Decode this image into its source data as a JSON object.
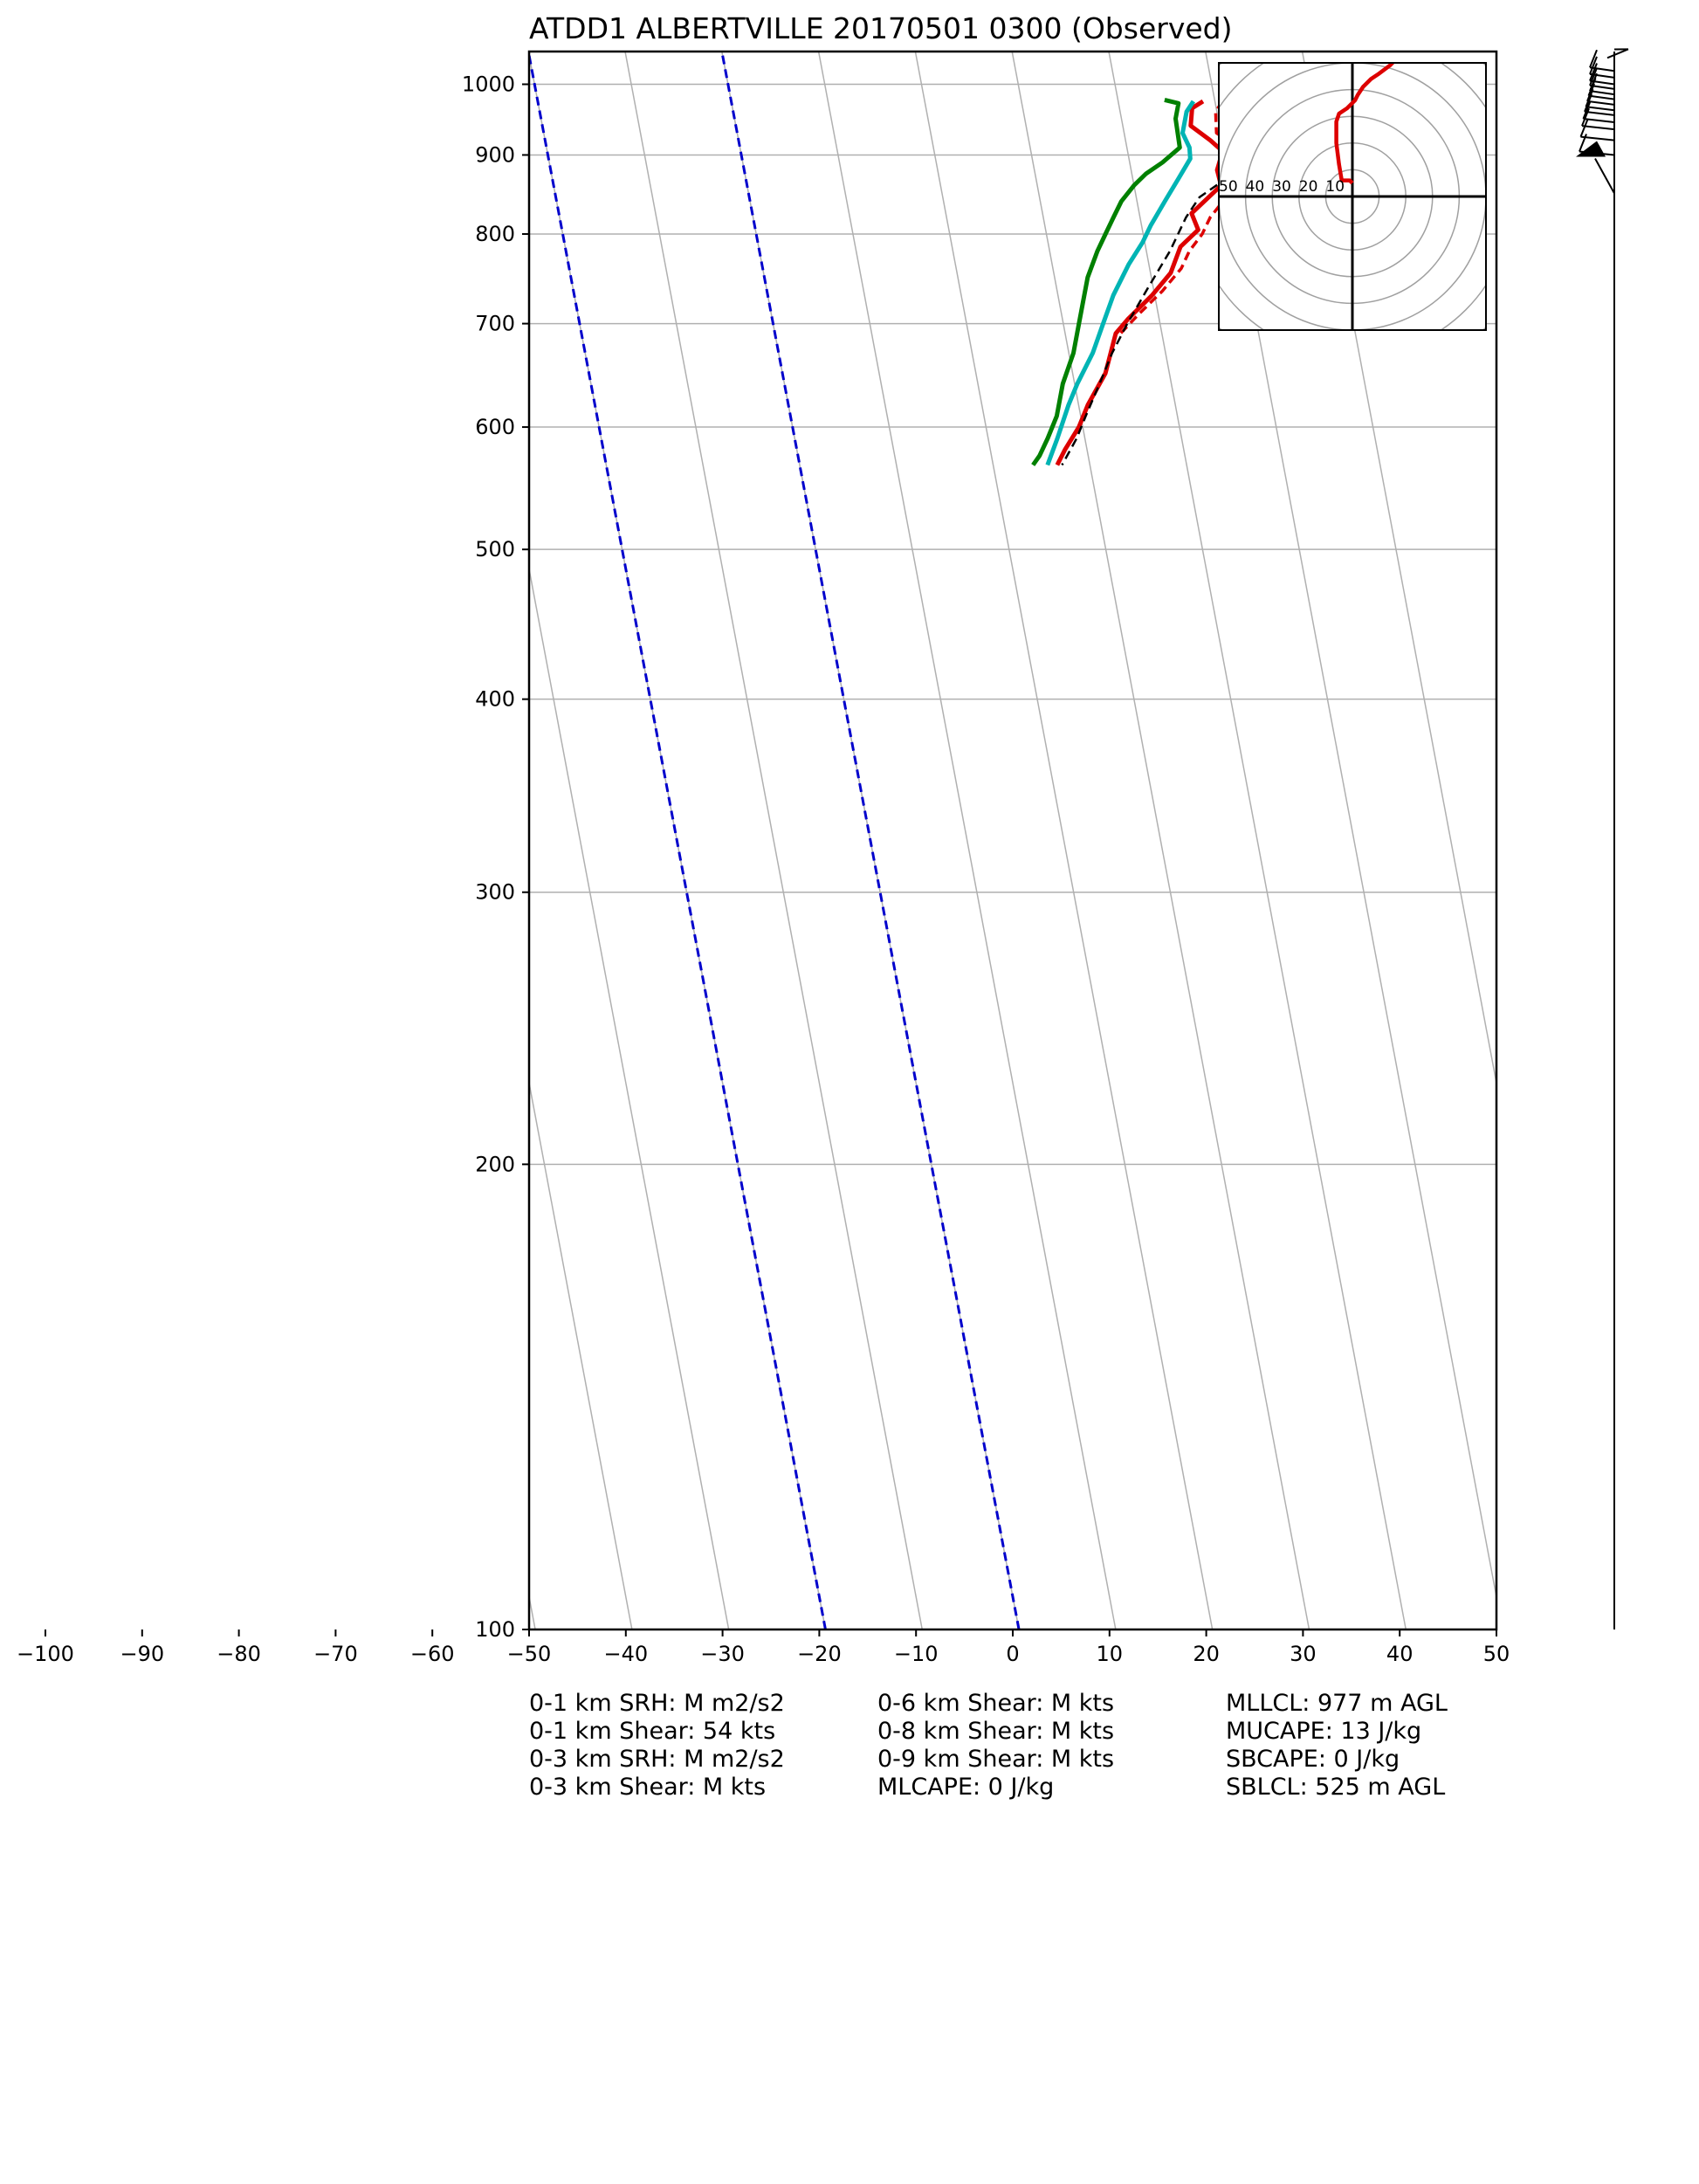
{
  "chart_data": {
    "type": "line",
    "title": "ATDD1 ALBERTVILLE 20170501 0300   (Observed)",
    "xlim": [
      -50,
      50
    ],
    "ylim": [
      1050,
      100
    ],
    "y_scale": "log",
    "grid": true,
    "x_ticks": [
      "−100",
      "−90",
      "−80",
      "−70",
      "−60",
      "−50",
      "−40",
      "−30",
      "−20",
      "−10",
      "0",
      "10",
      "20",
      "30",
      "40",
      "50"
    ],
    "x_tick_values": [
      -100,
      -90,
      -80,
      -70,
      -60,
      -50,
      -40,
      -30,
      -20,
      -10,
      0,
      10,
      20,
      30,
      40,
      50
    ],
    "y_ticks": [
      "100",
      "200",
      "300",
      "400",
      "500",
      "600",
      "700",
      "800",
      "900",
      "1000"
    ],
    "y_tick_values": [
      100,
      200,
      300,
      400,
      500,
      600,
      700,
      800,
      900,
      1000
    ],
    "isotherms_0_and_minus20": [
      0,
      -20
    ],
    "series": [
      {
        "color": "#dd0000",
        "style": "solid",
        "points": [
          [
            20.0,
            975
          ],
          [
            19.0,
            965
          ],
          [
            19.2,
            940
          ],
          [
            21.5,
            920
          ],
          [
            23.0,
            905
          ],
          [
            22.8,
            880
          ],
          [
            23.5,
            860
          ],
          [
            21.0,
            825
          ],
          [
            22.0,
            805
          ],
          [
            20.5,
            785
          ],
          [
            20.0,
            755
          ],
          [
            18.5,
            730
          ],
          [
            16.5,
            705
          ],
          [
            15.5,
            690
          ],
          [
            15.2,
            650
          ],
          [
            14.0,
            620
          ],
          [
            13.5,
            600
          ],
          [
            12.5,
            580
          ],
          [
            12.0,
            567
          ]
        ]
      },
      {
        "color": "#dd0000",
        "style": "dashed",
        "points": [
          [
            22.0,
            975
          ],
          [
            21.5,
            960
          ],
          [
            22.0,
            930
          ],
          [
            24.5,
            910
          ],
          [
            25.0,
            895
          ],
          [
            25.5,
            875
          ],
          [
            24.5,
            850
          ],
          [
            23.0,
            820
          ],
          [
            22.5,
            800
          ],
          [
            21.5,
            780
          ],
          [
            21.0,
            760
          ],
          [
            19.5,
            735
          ],
          [
            17.5,
            710
          ],
          [
            16.0,
            690
          ]
        ]
      },
      {
        "color": "#000000",
        "style": "dashed",
        "points": [
          [
            25.5,
            900
          ],
          [
            24.0,
            870
          ],
          [
            21.5,
            845
          ],
          [
            20.5,
            820
          ],
          [
            19.5,
            780
          ],
          [
            18.0,
            740
          ],
          [
            16.5,
            700
          ],
          [
            15.5,
            670
          ],
          [
            14.8,
            640
          ],
          [
            14.0,
            610
          ],
          [
            13.5,
            590
          ],
          [
            12.5,
            567
          ]
        ]
      },
      {
        "color": "#00b4b4",
        "style": "solid",
        "points": [
          [
            19.0,
            975
          ],
          [
            18.5,
            960
          ],
          [
            18.5,
            930
          ],
          [
            19.5,
            910
          ],
          [
            19.8,
            895
          ],
          [
            19.0,
            870
          ],
          [
            18.0,
            840
          ],
          [
            17.0,
            810
          ],
          [
            16.5,
            790
          ],
          [
            15.5,
            765
          ],
          [
            14.5,
            730
          ],
          [
            14.0,
            700
          ],
          [
            13.5,
            670
          ],
          [
            12.5,
            640
          ],
          [
            12.0,
            620
          ],
          [
            11.5,
            590
          ],
          [
            11.0,
            567
          ]
        ]
      },
      {
        "color": "#008000",
        "style": "solid",
        "points": [
          [
            16.0,
            977
          ],
          [
            17.5,
            972
          ],
          [
            17.5,
            950
          ],
          [
            18.0,
            930
          ],
          [
            18.5,
            910
          ],
          [
            17.0,
            890
          ],
          [
            15.5,
            875
          ],
          [
            14.5,
            860
          ],
          [
            13.5,
            840
          ],
          [
            13.0,
            820
          ],
          [
            12.5,
            800
          ],
          [
            12.0,
            780
          ],
          [
            11.5,
            750
          ],
          [
            11.5,
            720
          ],
          [
            11.5,
            700
          ],
          [
            11.5,
            670
          ],
          [
            11.0,
            640
          ],
          [
            11.0,
            610
          ],
          [
            10.5,
            590
          ],
          [
            10.0,
            575
          ],
          [
            9.5,
            567
          ]
        ]
      }
    ],
    "hodograph": {
      "ring_labels": [
        "50",
        "40",
        "30",
        "20",
        "10"
      ],
      "ring_values": [
        50,
        40,
        30,
        20,
        10
      ],
      "u_range": [
        -50,
        50
      ],
      "trace": [
        [
          0,
          5
        ],
        [
          -1,
          6
        ],
        [
          -3,
          6
        ],
        [
          -4,
          6
        ],
        [
          -5,
          12
        ],
        [
          -6,
          20
        ],
        [
          -6,
          28
        ],
        [
          -5,
          31
        ],
        [
          -2,
          33
        ],
        [
          1,
          36
        ],
        [
          2,
          38
        ],
        [
          4,
          41
        ],
        [
          7,
          44
        ],
        [
          10,
          46
        ],
        [
          14,
          49
        ],
        [
          16,
          51
        ]
      ]
    },
    "wind_barbs": {
      "pressures": [
        900,
        920,
        935,
        945,
        955,
        962,
        970,
        978,
        985,
        993,
        1000,
        1010,
        1020
      ]
    }
  },
  "stats": {
    "col1": [
      "0-1 km SRH: M m2/s2",
      "0-1 km Shear: 54 kts",
      "0-3 km SRH: M m2/s2",
      "0-3 km Shear: M kts"
    ],
    "col2": [
      "0-6 km Shear: M kts",
      "0-8 km Shear: M kts",
      "0-9 km Shear: M kts",
      "MLCAPE: 0 J/kg"
    ],
    "col3": [
      "MLLCL: 977 m AGL",
      "MUCAPE: 13 J/kg",
      "SBCAPE: 0 J/kg",
      "SBLCL: 525 m AGL"
    ]
  },
  "colors": {
    "grid": "#b0b0b0",
    "isotherm": "#0000cc",
    "temperature": "#dd0000",
    "dewpoint": "#008000"
  }
}
